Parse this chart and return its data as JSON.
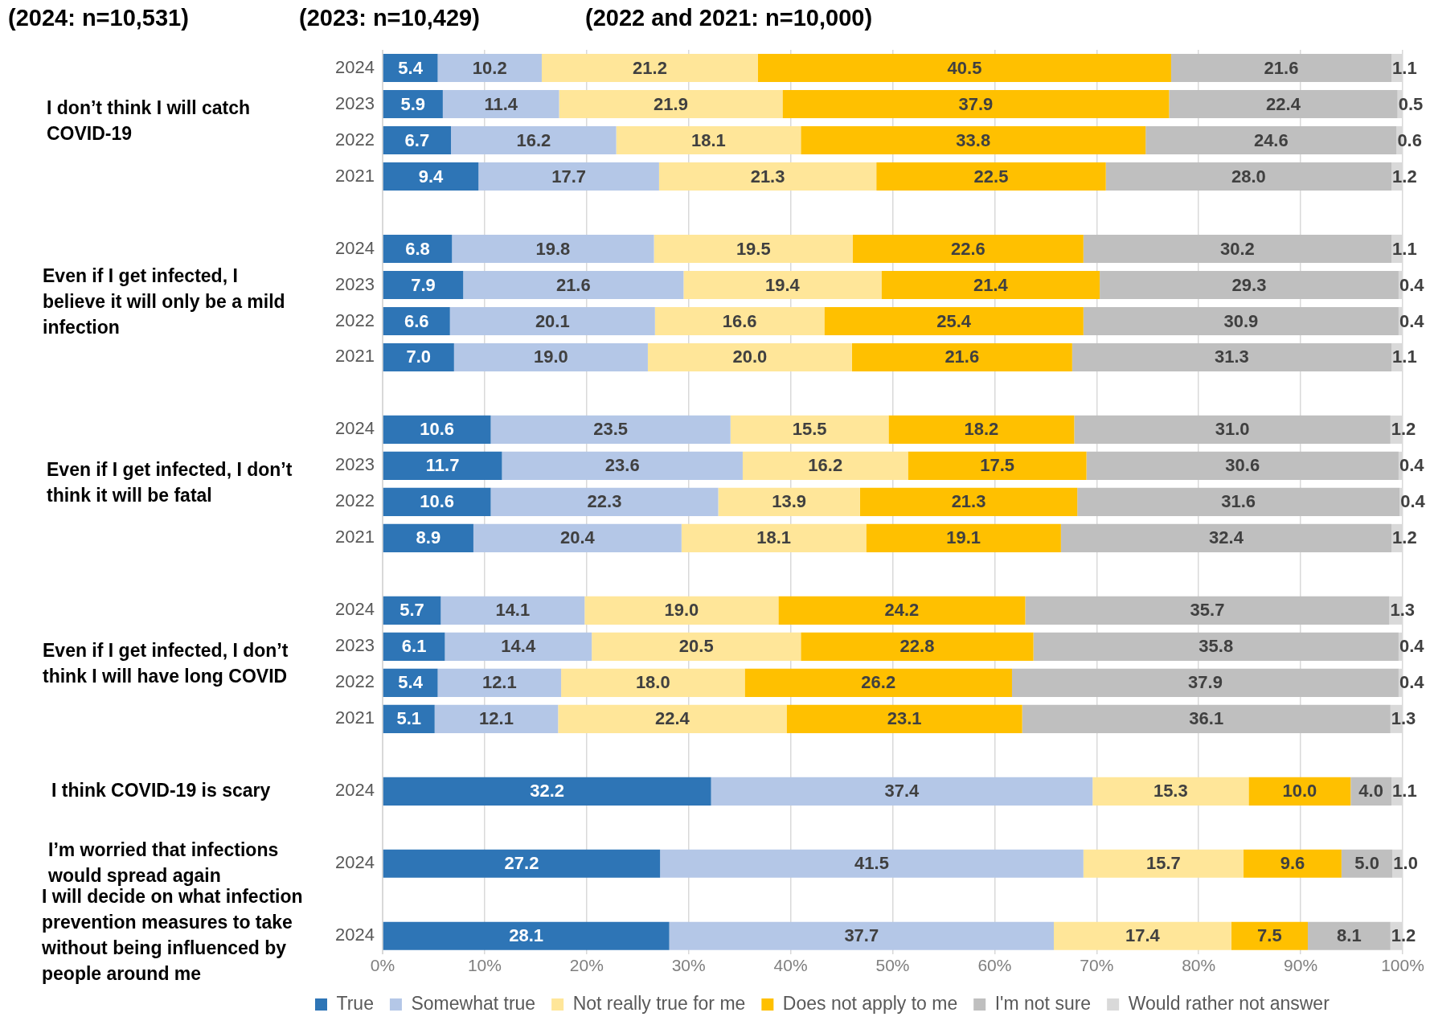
{
  "chart_data": {
    "type": "bar",
    "orientation": "horizontal",
    "stacked": true,
    "categories": [
      "2024",
      "2023",
      "2022",
      "2021",
      null,
      "2024",
      "2023",
      "2022",
      "2021",
      null,
      "2024",
      "2023",
      "2022",
      "2021",
      null,
      "2024",
      "2023",
      "2022",
      "2021",
      null,
      "2024",
      null,
      "2024",
      null,
      "2024"
    ],
    "series": [
      {
        "name": "True",
        "color": "#2e75b6",
        "values": [
          5.4,
          5.9,
          6.7,
          9.4,
          null,
          6.8,
          7.9,
          6.6,
          7.0,
          null,
          10.6,
          11.7,
          10.6,
          8.9,
          null,
          5.7,
          6.1,
          5.4,
          5.1,
          null,
          32.2,
          null,
          27.2,
          null,
          28.1
        ],
        "value_labels": [
          "5.4",
          "5.9",
          "6.7",
          "9.4",
          null,
          "6.8",
          "7.9",
          "6.6",
          "7.0",
          null,
          "10.6",
          "11.7",
          "10.6",
          "8.9",
          null,
          "5.7",
          "6.1",
          "5.4",
          "5.1",
          null,
          "32.2",
          null,
          "27.2",
          null,
          "28.1"
        ]
      },
      {
        "name": "Somewhat true",
        "color": "#b4c7e7",
        "values": [
          10.2,
          11.4,
          16.2,
          17.7,
          null,
          19.8,
          21.6,
          20.1,
          19.0,
          null,
          23.5,
          23.6,
          22.3,
          20.4,
          null,
          14.1,
          14.4,
          12.1,
          12.1,
          null,
          37.4,
          null,
          41.5,
          null,
          37.7
        ],
        "value_labels": [
          "10.2",
          "11.4",
          "16.2",
          "17.7",
          null,
          "19.8",
          "21.6",
          "20.1",
          "19.0",
          null,
          "23.5",
          "23.6",
          "22.3",
          "20.4",
          null,
          "14.1",
          "14.4",
          "12.1",
          "12.1",
          null,
          "37.4",
          null,
          "41.5",
          null,
          "37.7"
        ]
      },
      {
        "name": "Not really true for me",
        "color": "#ffe699",
        "values": [
          21.2,
          21.9,
          18.1,
          21.3,
          null,
          19.5,
          19.4,
          16.6,
          20.0,
          null,
          15.5,
          16.2,
          13.9,
          18.1,
          null,
          19.0,
          20.5,
          18.0,
          22.4,
          null,
          15.3,
          null,
          15.7,
          null,
          17.4
        ],
        "value_labels": [
          "21.2",
          "21.9",
          "18.1",
          "21.3",
          null,
          "19.5",
          "19.4",
          "16.6",
          "20.0",
          null,
          "15.5",
          "16.2",
          "13.9",
          "18.1",
          null,
          "19.0",
          "20.5",
          "18.0",
          "22.4",
          null,
          "15.3",
          null,
          "15.7",
          null,
          "17.4"
        ]
      },
      {
        "name": "Does not apply to me",
        "color": "#ffc000",
        "values": [
          40.5,
          37.9,
          33.8,
          22.5,
          null,
          22.6,
          21.4,
          25.4,
          21.6,
          null,
          18.2,
          17.5,
          21.3,
          19.1,
          null,
          24.2,
          22.8,
          26.2,
          23.1,
          null,
          10.0,
          null,
          9.6,
          null,
          7.5
        ],
        "value_labels": [
          "40.5",
          "37.9",
          "33.8",
          "22.5",
          null,
          "22.6",
          "21.4",
          "25.4",
          "21.6",
          null,
          "18.2",
          "17.5",
          "21.3",
          "19.1",
          null,
          "24.2",
          "22.8",
          "26.2",
          "23.1",
          null,
          "10.0",
          null,
          "9.6",
          null,
          "7.5"
        ]
      },
      {
        "name": "I'm not sure",
        "color": "#bfbfbf",
        "values": [
          21.6,
          22.4,
          24.6,
          28.0,
          null,
          30.2,
          29.3,
          30.9,
          31.3,
          null,
          31.0,
          30.6,
          31.6,
          32.4,
          null,
          35.7,
          35.8,
          37.9,
          36.1,
          null,
          4.0,
          null,
          5.0,
          null,
          8.1
        ],
        "value_labels": [
          "21.6",
          "22.4",
          "24.6",
          "28.0",
          null,
          "30.2",
          "29.3",
          "30.9",
          "31.3",
          null,
          "31.0",
          "30.6",
          "31.6",
          "32.4",
          null,
          "35.7",
          "35.8",
          "37.9",
          "36.1",
          null,
          "4.0",
          null,
          "5.0",
          null,
          "8.1"
        ]
      },
      {
        "name": "Would rather not answer",
        "color": "#d9d9d9",
        "values": [
          1.1,
          0.5,
          0.6,
          1.2,
          null,
          1.1,
          0.4,
          0.4,
          1.1,
          null,
          1.2,
          0.4,
          0.4,
          1.2,
          null,
          1.3,
          0.4,
          0.4,
          1.3,
          null,
          1.1,
          null,
          1.0,
          null,
          1.2
        ],
        "value_labels": [
          "1.1",
          "0.5",
          "0.6",
          "1.2",
          null,
          "1.1",
          "0.4",
          "0.4",
          "1.1",
          null,
          "1.2",
          "0.4",
          "0.4",
          "1.2",
          null,
          "1.3",
          "0.4",
          "0.4",
          "1.3",
          null,
          "1.1",
          null,
          "1.0",
          null,
          "1.2"
        ]
      }
    ],
    "xlim": [
      0,
      100
    ],
    "xticks": [
      {
        "value": 0,
        "label": "0%"
      },
      {
        "value": 10,
        "label": "10%"
      },
      {
        "value": 20,
        "label": "20%"
      },
      {
        "value": 30,
        "label": "30%"
      },
      {
        "value": 40,
        "label": "40%"
      },
      {
        "value": 50,
        "label": "50%"
      },
      {
        "value": 60,
        "label": "60%"
      },
      {
        "value": 70,
        "label": "70%"
      },
      {
        "value": 80,
        "label": "80%"
      },
      {
        "value": 90,
        "label": "90%"
      },
      {
        "value": 100,
        "label": "100%"
      }
    ],
    "grid": "x",
    "legend": "bottom",
    "annotations": [
      "(2024: n=10,531)",
      "(2023: n=10,429)",
      "(2022 and 2021: n=10,000)",
      "I don’t think I will catch COVID-19",
      "Even if I get infected, I believe it will only be a mild infection",
      "Even if I get infected, I don’t think it will be fatal",
      "Even if I get infected, I don’t think I will have long COVID",
      "I think COVID-19 is scary",
      "I’m worried that infections would spread again",
      "I will decide on what infection prevention measures to take without being influenced by people around me"
    ]
  }
}
